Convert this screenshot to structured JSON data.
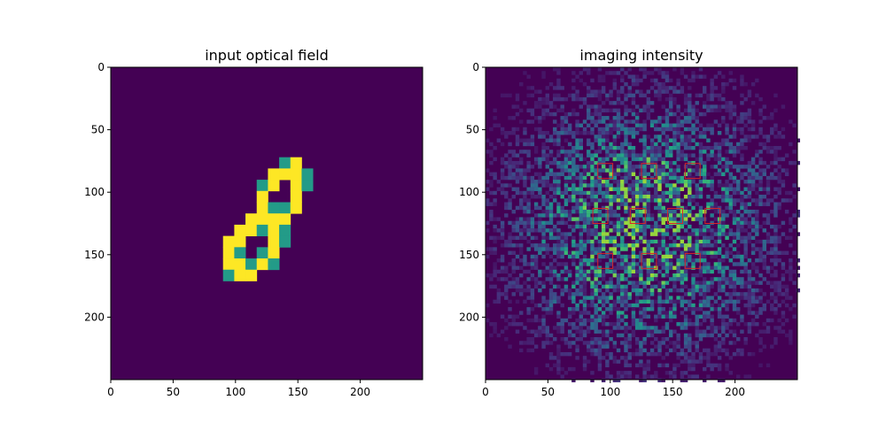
{
  "figure": {
    "background": "#ffffff",
    "colormap": "viridis",
    "roi_color": "#d62728"
  },
  "chart_data": [
    {
      "type": "heatmap",
      "title": "input optical field",
      "xlabel": "",
      "ylabel": "",
      "xlim": [
        0,
        250
      ],
      "ylim": [
        250,
        0
      ],
      "xticks": [
        0,
        50,
        100,
        150,
        200
      ],
      "yticks": [
        0,
        50,
        100,
        150,
        200
      ],
      "grid": false,
      "content": "handwritten digit 8 (MNIST-like)",
      "background_value": 0,
      "digit_value": 1,
      "digit_strokes": [
        {
          "kind": "upper-loop",
          "cx": 137,
          "cy": 102,
          "rx": 13,
          "ry": 22,
          "rotation_deg": 28
        },
        {
          "kind": "lower-loop",
          "cx": 114,
          "cy": 144,
          "rx": 15,
          "ry": 22,
          "rotation_deg": 40
        }
      ]
    },
    {
      "type": "heatmap",
      "title": "imaging intensity",
      "xlabel": "",
      "ylabel": "",
      "xlim": [
        0,
        250
      ],
      "ylim": [
        250,
        0
      ],
      "xticks": [
        0,
        50,
        100,
        150,
        200
      ],
      "yticks": [
        0,
        50,
        100,
        150,
        200
      ],
      "grid": false,
      "content": "speckle intensity pattern",
      "speckle_center": [
        125,
        125
      ],
      "speckle_radius": 95,
      "detector_regions": [
        {
          "x": 90,
          "y": 77,
          "w": 12,
          "h": 12
        },
        {
          "x": 125,
          "y": 77,
          "w": 12,
          "h": 12
        },
        {
          "x": 160,
          "y": 77,
          "w": 12,
          "h": 12
        },
        {
          "x": 86,
          "y": 113,
          "w": 12,
          "h": 12
        },
        {
          "x": 116,
          "y": 113,
          "w": 12,
          "h": 12
        },
        {
          "x": 146,
          "y": 113,
          "w": 12,
          "h": 12
        },
        {
          "x": 176,
          "y": 113,
          "w": 12,
          "h": 12
        },
        {
          "x": 90,
          "y": 149,
          "w": 12,
          "h": 12
        },
        {
          "x": 125,
          "y": 149,
          "w": 12,
          "h": 12
        },
        {
          "x": 160,
          "y": 149,
          "w": 12,
          "h": 12
        }
      ]
    }
  ]
}
